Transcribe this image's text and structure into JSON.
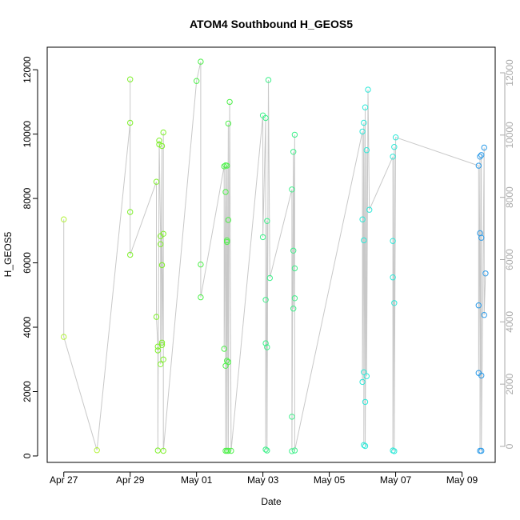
{
  "chart_data": {
    "type": "scatter",
    "title": "ATOM4 Southbound H_GEOS5",
    "xlabel": "Date",
    "ylabel": "H_GEOS5",
    "x_ticks": [
      "Apr 27",
      "Apr 29",
      "May 01",
      "May 03",
      "May 05",
      "May 07",
      "May 09"
    ],
    "y_ticks": [
      "0",
      "2000",
      "4000",
      "6000",
      "8000",
      "10000",
      "12000"
    ],
    "y_ticks_right": [
      "0",
      "2000",
      "4000",
      "6000",
      "8000",
      "10000",
      "12000"
    ],
    "xlim": [
      "2018-04-26 12:00",
      "2018-05-10 00:00"
    ],
    "ylim": [
      -200,
      12700
    ],
    "grid": false,
    "line_color": "#c8c8c8",
    "point_style": "open-circle",
    "series": [
      {
        "color": "#b3f23a",
        "points": [
          {
            "x": "2018-04-27 00:00",
            "y": 7350
          },
          {
            "x": "2018-04-27 00:00",
            "y": 3700
          },
          {
            "x": "2018-04-28 00:00",
            "y": 180
          }
        ]
      },
      {
        "color": "#7ef02a",
        "points": [
          {
            "x": "2018-04-29 00:00",
            "y": 10350
          },
          {
            "x": "2018-04-29 00:00",
            "y": 11700
          },
          {
            "x": "2018-04-29 00:00",
            "y": 7580
          },
          {
            "x": "2018-04-29 00:00",
            "y": 6250
          },
          {
            "x": "2018-04-29 19:00",
            "y": 8520
          },
          {
            "x": "2018-04-29 19:00",
            "y": 4320
          },
          {
            "x": "2018-04-29 20:00",
            "y": 3400
          },
          {
            "x": "2018-04-29 20:00",
            "y": 3280
          },
          {
            "x": "2018-04-29 20:00",
            "y": 170
          },
          {
            "x": "2018-04-29 21:00",
            "y": 9680
          },
          {
            "x": "2018-04-29 21:00",
            "y": 9800
          },
          {
            "x": "2018-04-29 22:00",
            "y": 6830
          },
          {
            "x": "2018-04-29 22:00",
            "y": 6580
          },
          {
            "x": "2018-04-29 22:00",
            "y": 2850
          },
          {
            "x": "2018-04-29 23:00",
            "y": 9630
          },
          {
            "x": "2018-04-29 23:00",
            "y": 5930
          },
          {
            "x": "2018-04-29 23:00",
            "y": 3450
          },
          {
            "x": "2018-04-29 23:00",
            "y": 3520
          },
          {
            "x": "2018-04-30 00:00",
            "y": 6900
          },
          {
            "x": "2018-04-30 00:00",
            "y": 10050
          },
          {
            "x": "2018-04-30 00:00",
            "y": 3000
          },
          {
            "x": "2018-04-30 00:00",
            "y": 160
          }
        ]
      },
      {
        "color": "#4ef04a",
        "points": [
          {
            "x": "2018-05-01 00:00",
            "y": 11650
          },
          {
            "x": "2018-05-01 03:00",
            "y": 12250
          },
          {
            "x": "2018-05-01 03:00",
            "y": 5950
          },
          {
            "x": "2018-05-01 03:00",
            "y": 4930
          },
          {
            "x": "2018-05-01 20:00",
            "y": 9000
          },
          {
            "x": "2018-05-01 20:00",
            "y": 3330
          },
          {
            "x": "2018-05-01 21:00",
            "y": 9030
          },
          {
            "x": "2018-05-01 21:00",
            "y": 8200
          },
          {
            "x": "2018-05-01 21:00",
            "y": 2800
          },
          {
            "x": "2018-05-01 21:00",
            "y": 160
          },
          {
            "x": "2018-05-01 22:00",
            "y": 9020
          },
          {
            "x": "2018-05-01 22:00",
            "y": 6700
          },
          {
            "x": "2018-05-01 22:00",
            "y": 6650
          },
          {
            "x": "2018-05-01 22:00",
            "y": 2960
          },
          {
            "x": "2018-05-01 22:00",
            "y": 160
          },
          {
            "x": "2018-05-01 23:00",
            "y": 10330
          },
          {
            "x": "2018-05-01 23:00",
            "y": 7330
          },
          {
            "x": "2018-05-01 23:00",
            "y": 2920
          },
          {
            "x": "2018-05-01 23:00",
            "y": 160
          },
          {
            "x": "2018-05-02 00:00",
            "y": 11000
          },
          {
            "x": "2018-05-02 01:00",
            "y": 160
          }
        ]
      },
      {
        "color": "#3ff08a",
        "points": [
          {
            "x": "2018-05-03 00:00",
            "y": 10580
          },
          {
            "x": "2018-05-03 00:00",
            "y": 6800
          },
          {
            "x": "2018-05-03 02:00",
            "y": 10500
          },
          {
            "x": "2018-05-03 02:00",
            "y": 4850
          },
          {
            "x": "2018-05-03 02:00",
            "y": 3500
          },
          {
            "x": "2018-05-03 02:00",
            "y": 200
          },
          {
            "x": "2018-05-03 03:00",
            "y": 7300
          },
          {
            "x": "2018-05-03 03:00",
            "y": 3380
          },
          {
            "x": "2018-05-03 03:00",
            "y": 170
          },
          {
            "x": "2018-05-03 04:00",
            "y": 11680
          },
          {
            "x": "2018-05-03 05:00",
            "y": 5530
          },
          {
            "x": "2018-05-03 21:00",
            "y": 8280
          },
          {
            "x": "2018-05-03 21:00",
            "y": 1220
          },
          {
            "x": "2018-05-03 21:00",
            "y": 150
          },
          {
            "x": "2018-05-03 22:00",
            "y": 9450
          },
          {
            "x": "2018-05-03 22:00",
            "y": 6380
          },
          {
            "x": "2018-05-03 22:00",
            "y": 4580
          },
          {
            "x": "2018-05-03 23:00",
            "y": 9980
          },
          {
            "x": "2018-05-03 23:00",
            "y": 5830
          },
          {
            "x": "2018-05-03 23:00",
            "y": 4900
          },
          {
            "x": "2018-05-03 23:00",
            "y": 170
          }
        ]
      },
      {
        "color": "#2ee8d8",
        "points": [
          {
            "x": "2018-05-06 00:00",
            "y": 10080
          },
          {
            "x": "2018-05-06 00:00",
            "y": 7350
          },
          {
            "x": "2018-05-06 00:00",
            "y": 2300
          },
          {
            "x": "2018-05-06 01:00",
            "y": 10350
          },
          {
            "x": "2018-05-06 01:00",
            "y": 6700
          },
          {
            "x": "2018-05-06 01:00",
            "y": 2600
          },
          {
            "x": "2018-05-06 01:00",
            "y": 340
          },
          {
            "x": "2018-05-06 02:00",
            "y": 10830
          },
          {
            "x": "2018-05-06 02:00",
            "y": 1680
          },
          {
            "x": "2018-05-06 02:00",
            "y": 310
          },
          {
            "x": "2018-05-06 03:00",
            "y": 9500
          },
          {
            "x": "2018-05-06 03:00",
            "y": 2480
          },
          {
            "x": "2018-05-06 04:00",
            "y": 11380
          },
          {
            "x": "2018-05-06 05:00",
            "y": 7650
          },
          {
            "x": "2018-05-06 22:00",
            "y": 9300
          },
          {
            "x": "2018-05-06 22:00",
            "y": 6680
          },
          {
            "x": "2018-05-06 22:00",
            "y": 5550
          },
          {
            "x": "2018-05-06 22:00",
            "y": 170
          },
          {
            "x": "2018-05-06 23:00",
            "y": 9600
          },
          {
            "x": "2018-05-06 23:00",
            "y": 4750
          },
          {
            "x": "2018-05-06 23:00",
            "y": 150
          },
          {
            "x": "2018-05-07 00:00",
            "y": 9900
          }
        ]
      },
      {
        "color": "#2b9ae8",
        "points": [
          {
            "x": "2018-05-09 12:00",
            "y": 9020
          },
          {
            "x": "2018-05-09 12:00",
            "y": 4680
          },
          {
            "x": "2018-05-09 12:00",
            "y": 2580
          },
          {
            "x": "2018-05-09 13:00",
            "y": 9300
          },
          {
            "x": "2018-05-09 13:00",
            "y": 6920
          },
          {
            "x": "2018-05-09 13:00",
            "y": 160
          },
          {
            "x": "2018-05-09 14:00",
            "y": 9350
          },
          {
            "x": "2018-05-09 14:00",
            "y": 6780
          },
          {
            "x": "2018-05-09 14:00",
            "y": 2500
          },
          {
            "x": "2018-05-09 14:00",
            "y": 160
          },
          {
            "x": "2018-05-09 16:00",
            "y": 9580
          },
          {
            "x": "2018-05-09 16:00",
            "y": 4380
          },
          {
            "x": "2018-05-09 17:00",
            "y": 5670
          }
        ]
      }
    ]
  }
}
